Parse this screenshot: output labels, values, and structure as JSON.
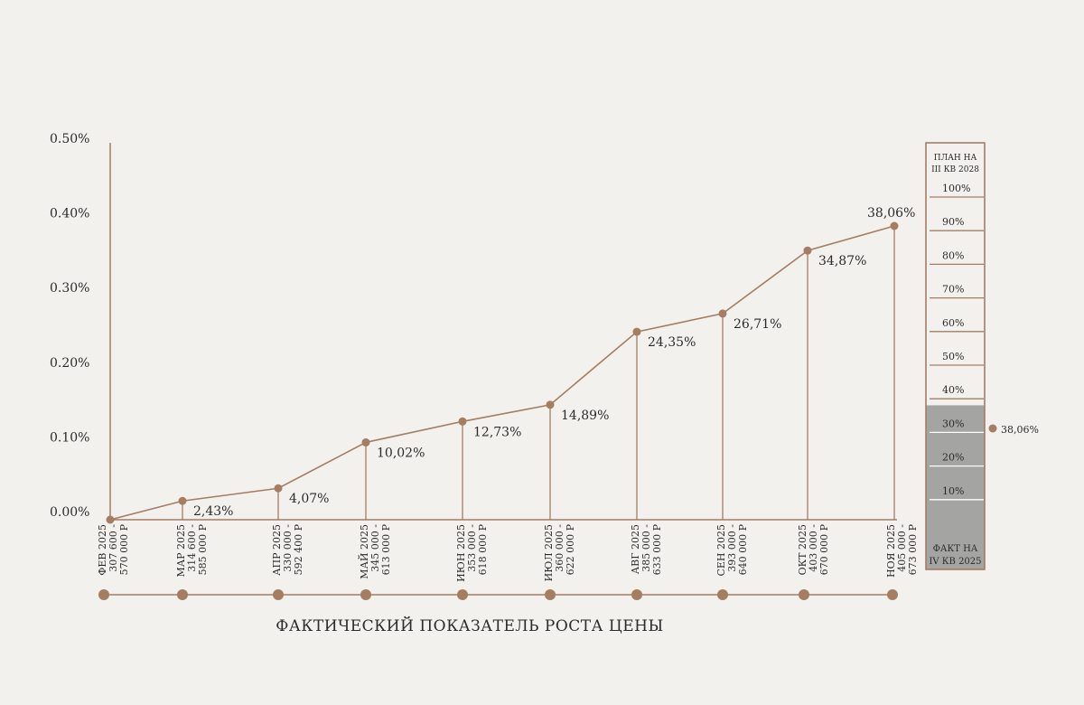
{
  "colors": {
    "accent": "#a47d62",
    "background": "#f3f1ed",
    "text": "#2b2b2b",
    "fill_gray": "#a4a4a2",
    "white": "#ffffff"
  },
  "chart_data": {
    "type": "line",
    "title": "ФАКТИЧЕСКИЙ ПОКАЗАТЕЛЬ РОСТА ЦЕНЫ",
    "xlabel": "",
    "ylabel": "",
    "y_ticks": [
      "0.00%",
      "0.10%",
      "0.20%",
      "0.30%",
      "0.40%",
      "0.50%"
    ],
    "ylim": [
      0,
      0.5
    ],
    "grid": false,
    "series": [
      {
        "values": [
          0,
          2.43,
          4.07,
          10.02,
          12.73,
          14.89,
          24.35,
          26.71,
          34.87,
          38.06
        ],
        "labels": [
          "",
          "2,43%",
          "4,07%",
          "10,02%",
          "12,73%",
          "14,89%",
          "24,35%",
          "26,71%",
          "34,87%",
          "38,06%"
        ]
      }
    ],
    "categories": [
      {
        "month": "ФЕВ 2025",
        "range": "307 600 -",
        "range2": "570 000 Р"
      },
      {
        "month": "МАР 2025",
        "range": "314 600 -",
        "range2": "585 000 Р"
      },
      {
        "month": "АПР 2025",
        "range": "330 000 -",
        "range2": "592 400 Р"
      },
      {
        "month": "МАЙ 2025",
        "range": "345 000 -",
        "range2": "613 000 Р"
      },
      {
        "month": "ИЮН 2025",
        "range": "353 000 -",
        "range2": "618 000 Р"
      },
      {
        "month": "ИЮЛ 2025",
        "range": "360 000 -",
        "range2": "622 000 Р"
      },
      {
        "month": "АВГ 2025",
        "range": "385 000 -",
        "range2": "633 000 Р"
      },
      {
        "month": "СЕН 2025",
        "range": "393 000 -",
        "range2": "640 000 Р"
      },
      {
        "month": "ОКТ 2025",
        "range": "403 000 -",
        "range2": "670 000 Р"
      },
      {
        "month": "НОЯ 2025",
        "range": "405 000 -",
        "range2": "673 000 Р"
      }
    ],
    "gauge": {
      "top_label_1": "ПЛАН НА",
      "top_label_2": "III КВ 2028",
      "bottom_label_1": "ФАКТ НА",
      "bottom_label_2": "IV КВ 2025",
      "ticks": [
        "100%",
        "90%",
        "80%",
        "70%",
        "60%",
        "50%",
        "40%",
        "30%",
        "20%",
        "10%"
      ],
      "value_percent": 38.06,
      "value_label": "38,06%"
    }
  }
}
